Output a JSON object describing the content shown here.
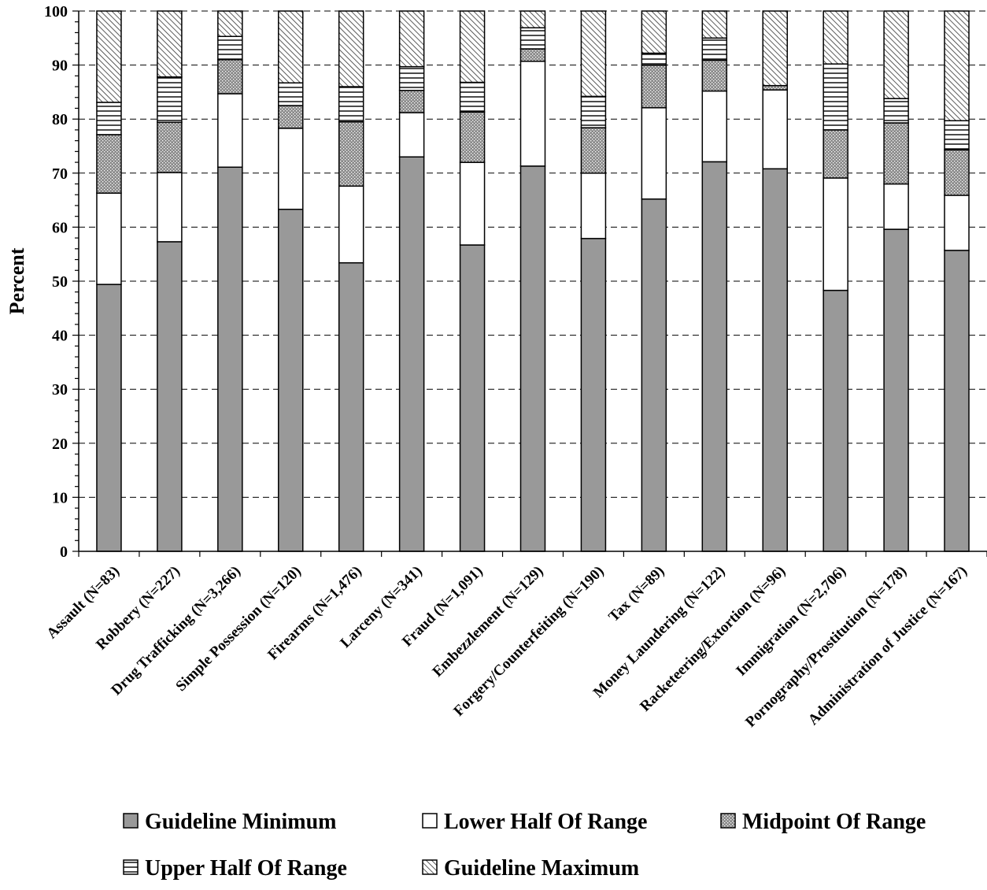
{
  "chart_data": {
    "type": "bar",
    "stacked": true,
    "ylabel": "Percent",
    "xlabel": "",
    "ylim": [
      0,
      100
    ],
    "yticks": [
      0,
      10,
      20,
      30,
      40,
      50,
      60,
      70,
      80,
      90,
      100
    ],
    "grid": "horizontal dashed",
    "legend_position": "bottom",
    "categories": [
      "Assault (N=83)",
      "Robbery (N=227)",
      "Drug Trafficking (N=3,266)",
      "Simple Possession (N=120)",
      "Firearms (N=1,476)",
      "Larceny (N=341)",
      "Fraud (N=1,091)",
      "Embezzlement (N=129)",
      "Forgery/Counterfeiting (N=190)",
      "Tax (N=89)",
      "Money Laundering (N=122)",
      "Racketeering/Extortion (N=96)",
      "Immigration (N=2,706)",
      "Pornography/Prostitution (N=178)",
      "Administration of Justice (N=167)"
    ],
    "series": [
      {
        "name": "Guideline Minimum",
        "pattern": "solid-gray",
        "color": "#999999",
        "values": [
          49.4,
          57.3,
          71.1,
          63.3,
          53.4,
          73.0,
          56.7,
          71.3,
          57.9,
          65.2,
          72.1,
          70.8,
          48.3,
          59.6,
          55.7
        ]
      },
      {
        "name": "Lower Half Of Range",
        "pattern": "white",
        "color": "#ffffff",
        "values": [
          16.9,
          12.8,
          13.6,
          15.0,
          14.2,
          8.2,
          15.3,
          19.4,
          12.1,
          16.9,
          13.1,
          14.6,
          20.8,
          8.4,
          10.2
        ]
      },
      {
        "name": "Midpoint Of Range",
        "pattern": "dots",
        "color": "#999999",
        "values": [
          10.8,
          9.3,
          6.3,
          4.2,
          11.9,
          4.1,
          9.3,
          2.3,
          8.4,
          7.9,
          5.7,
          0.8,
          8.9,
          11.3,
          8.4
        ]
      },
      {
        "name": "Upper Half Of Range",
        "pattern": "horizontal-lines",
        "color": "#000000",
        "values": [
          6.0,
          8.4,
          4.3,
          4.2,
          6.5,
          4.4,
          5.5,
          3.9,
          5.8,
          2.2,
          4.1,
          0.0,
          12.2,
          4.5,
          5.4
        ]
      },
      {
        "name": "Guideline Maximum",
        "pattern": "diagonal-hatch",
        "color": "#000000",
        "values": [
          16.9,
          12.2,
          4.7,
          13.3,
          14.0,
          10.3,
          13.2,
          3.1,
          15.8,
          7.8,
          5.0,
          13.8,
          9.8,
          16.2,
          20.3
        ]
      }
    ]
  }
}
